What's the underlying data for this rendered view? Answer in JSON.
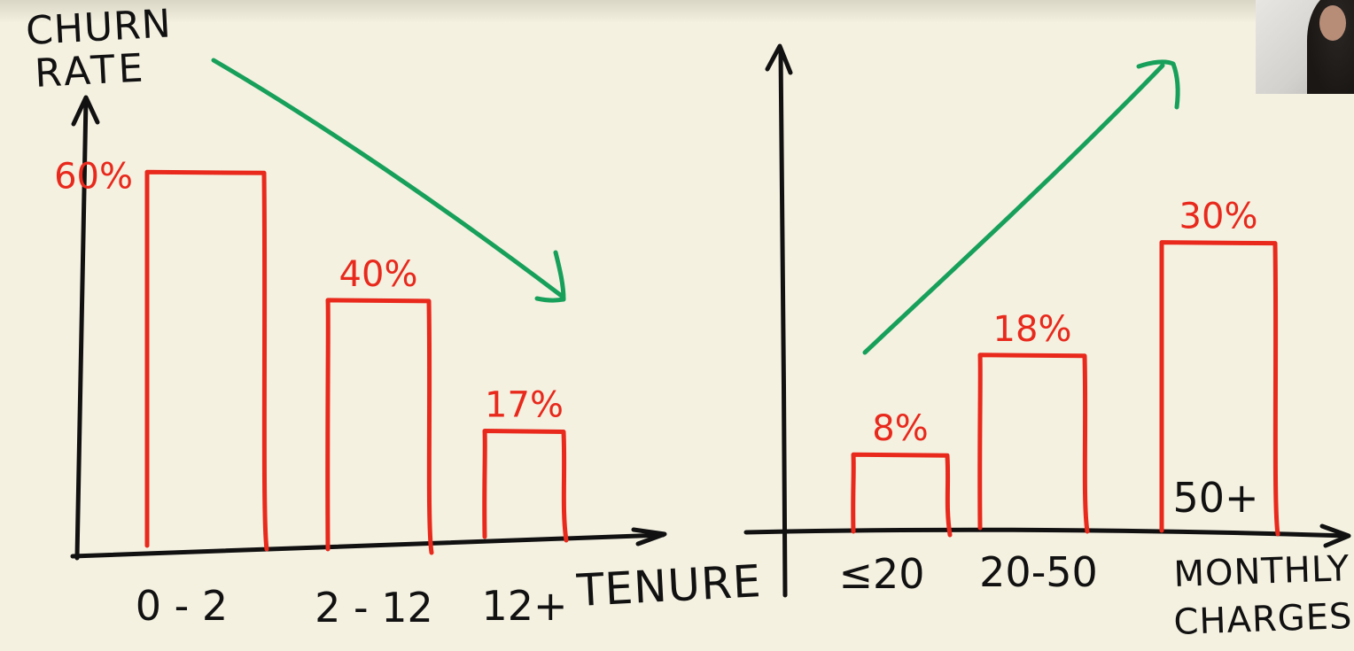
{
  "colors": {
    "axis": "#111111",
    "bar": "#e8291c",
    "arrow": "#17a05a",
    "board": "#f4f1e1"
  },
  "chart_data": [
    {
      "type": "bar",
      "ylabel_line1": "CHURN",
      "ylabel_line2": "RATE",
      "xlabel": "TENURE",
      "categories": [
        "0 - 2",
        "2 - 12",
        "12+"
      ],
      "values": [
        60,
        40,
        17
      ],
      "value_labels": [
        "60%",
        "40%",
        "17%"
      ],
      "ylim": [
        0,
        70
      ],
      "trend": "down"
    },
    {
      "type": "bar",
      "xlabel_line1": "MONTHLY",
      "xlabel_line2": "CHARGES",
      "categories": [
        "≤20",
        "20-50",
        "50+"
      ],
      "values": [
        8,
        18,
        30
      ],
      "value_labels": [
        "8%",
        "18%",
        "30%"
      ],
      "ylim": [
        0,
        45
      ],
      "trend": "up"
    }
  ],
  "webcam": {
    "icon": "presenter-webcam-icon"
  }
}
